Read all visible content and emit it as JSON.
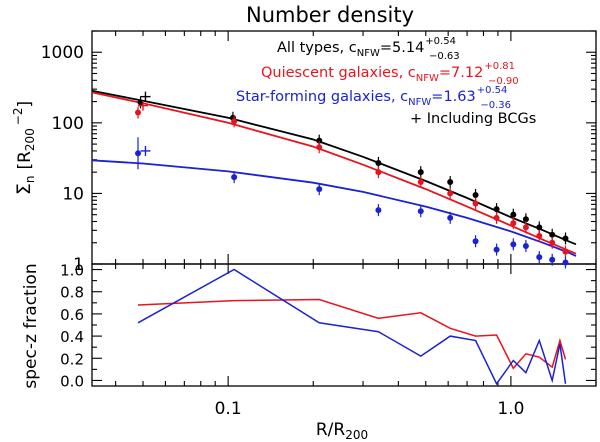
{
  "chart_data": [
    {
      "type": "scatter",
      "panel": "top",
      "title": "Number density",
      "xlabel_main": "R/R",
      "xlabel_sub": "200",
      "ylabel_symbol": "Σ",
      "ylabel_sub": "n",
      "ylabel_unit_main": "[R",
      "ylabel_unit_sub": "200",
      "ylabel_unit_sup": "−2",
      "ylabel_unit_close": "]",
      "xscale": "log",
      "yscale": "log",
      "xlim": [
        0.033,
        2.0
      ],
      "ylim": [
        1,
        2000
      ],
      "y_ticks": [
        1,
        10,
        100,
        1000
      ],
      "y_tick_labels": [
        "1",
        "10",
        "100",
        "1000"
      ],
      "legend": [
        {
          "key": "all",
          "color": "#000000",
          "text": "All types, c",
          "sub": "NFW",
          "value": "=5.14",
          "sup": "+0.54",
          "subsc": "−0.63"
        },
        {
          "key": "quiescent",
          "color": "#e8141d",
          "text": "Quiescent galaxies, c",
          "sub": "NFW",
          "value": "=7.12",
          "sup": "+0.81",
          "subsc": "−0.90"
        },
        {
          "key": "sf",
          "color": "#1a22d2",
          "text": "Star-forming galaxies, c",
          "sub": "NFW",
          "value": "=1.63",
          "sup": "+0.54",
          "subsc": "−0.36"
        },
        {
          "key": "bcg",
          "color": "#000000",
          "text": "+ Including BCGs"
        }
      ],
      "series": [
        {
          "name": "All types",
          "color": "#000000",
          "x": [
            0.049,
            0.104,
            0.21,
            0.34,
            0.48,
            0.61,
            0.75,
            0.89,
            1.02,
            1.13,
            1.26,
            1.4,
            1.56
          ],
          "y": [
            195,
            118,
            56,
            27,
            20,
            14.5,
            9.5,
            6.0,
            5.0,
            4.3,
            3.3,
            2.6,
            2.3
          ],
          "fit": {
            "x": [
              0.033,
              0.05,
              0.1,
              0.2,
              0.3,
              0.5,
              0.7,
              1.0,
              1.3,
              1.6,
              1.7
            ],
            "y": [
              285,
              205,
              118,
              58,
              33,
              15,
              8.6,
              4.6,
              3.0,
              2.1,
              1.9
            ]
          },
          "bcg": {
            "x": 0.051,
            "y": 235
          }
        },
        {
          "name": "Quiescent galaxies",
          "color": "#e8141d",
          "x": [
            0.048,
            0.105,
            0.21,
            0.34,
            0.48,
            0.61,
            0.75,
            0.89,
            1.02,
            1.13,
            1.26,
            1.4,
            1.56
          ],
          "y": [
            140,
            105,
            45,
            20,
            14.5,
            10.0,
            7.2,
            4.5,
            3.8,
            3.3,
            2.5,
            2.0,
            1.5
          ],
          "fit": {
            "x": [
              0.033,
              0.05,
              0.1,
              0.2,
              0.3,
              0.5,
              0.7,
              1.0,
              1.3,
              1.6,
              1.7
            ],
            "y": [
              270,
              190,
              100,
              46,
              25.5,
              11.5,
              6.5,
              3.5,
              2.2,
              1.55,
              1.4
            ]
          },
          "bcg": {
            "x": 0.05,
            "y": 175
          }
        },
        {
          "name": "Star-forming galaxies",
          "color": "#1a22d2",
          "x": [
            0.048,
            0.105,
            0.21,
            0.34,
            0.48,
            0.61,
            0.75,
            0.89,
            1.02,
            1.13,
            1.26,
            1.4,
            1.56
          ],
          "y": [
            37,
            17,
            11.5,
            5.8,
            5.6,
            4.5,
            2.1,
            1.6,
            1.9,
            1.8,
            1.25,
            1.15,
            1.05
          ],
          "fit": {
            "x": [
              0.033,
              0.05,
              0.1,
              0.2,
              0.3,
              0.5,
              0.7,
              1.0,
              1.3,
              1.6,
              1.7
            ],
            "y": [
              29.5,
              26.5,
              20.5,
              14.2,
              10.5,
              6.5,
              4.5,
              2.9,
              2.0,
              1.45,
              1.3
            ]
          },
          "bcg": {
            "x": 0.051,
            "y": 40
          }
        }
      ]
    },
    {
      "type": "line",
      "panel": "bottom",
      "ylabel": "spec-z fraction",
      "xlabel": "R/R200",
      "xscale": "log",
      "ylim": [
        -0.05,
        1.05
      ],
      "y_ticks": [
        0.0,
        0.2,
        0.4,
        0.6,
        0.8,
        1.0
      ],
      "y_tick_labels": [
        "0.0",
        "0.2",
        "0.4",
        "0.6",
        "0.8",
        "1.0"
      ],
      "x_ticks": [
        0.1,
        1.0
      ],
      "x_tick_labels": [
        "0.1",
        "1.0"
      ],
      "series": [
        {
          "name": "Quiescent",
          "color": "#e8141d",
          "x": [
            0.048,
            0.105,
            0.21,
            0.34,
            0.48,
            0.61,
            0.75,
            0.89,
            1.02,
            1.13,
            1.26,
            1.4,
            1.49,
            1.56
          ],
          "y": [
            0.68,
            0.72,
            0.73,
            0.56,
            0.61,
            0.47,
            0.4,
            0.41,
            0.11,
            0.24,
            0.21,
            0.12,
            0.36,
            0.19
          ]
        },
        {
          "name": "Star-forming",
          "color": "#1a22d2",
          "x": [
            0.048,
            0.105,
            0.21,
            0.34,
            0.48,
            0.61,
            0.75,
            0.89,
            1.02,
            1.13,
            1.26,
            1.4,
            1.49,
            1.56
          ],
          "y": [
            0.52,
            1.0,
            0.52,
            0.44,
            0.22,
            0.4,
            0.36,
            -0.03,
            0.18,
            0.07,
            0.36,
            0.0,
            0.33,
            -0.03
          ]
        }
      ]
    }
  ]
}
